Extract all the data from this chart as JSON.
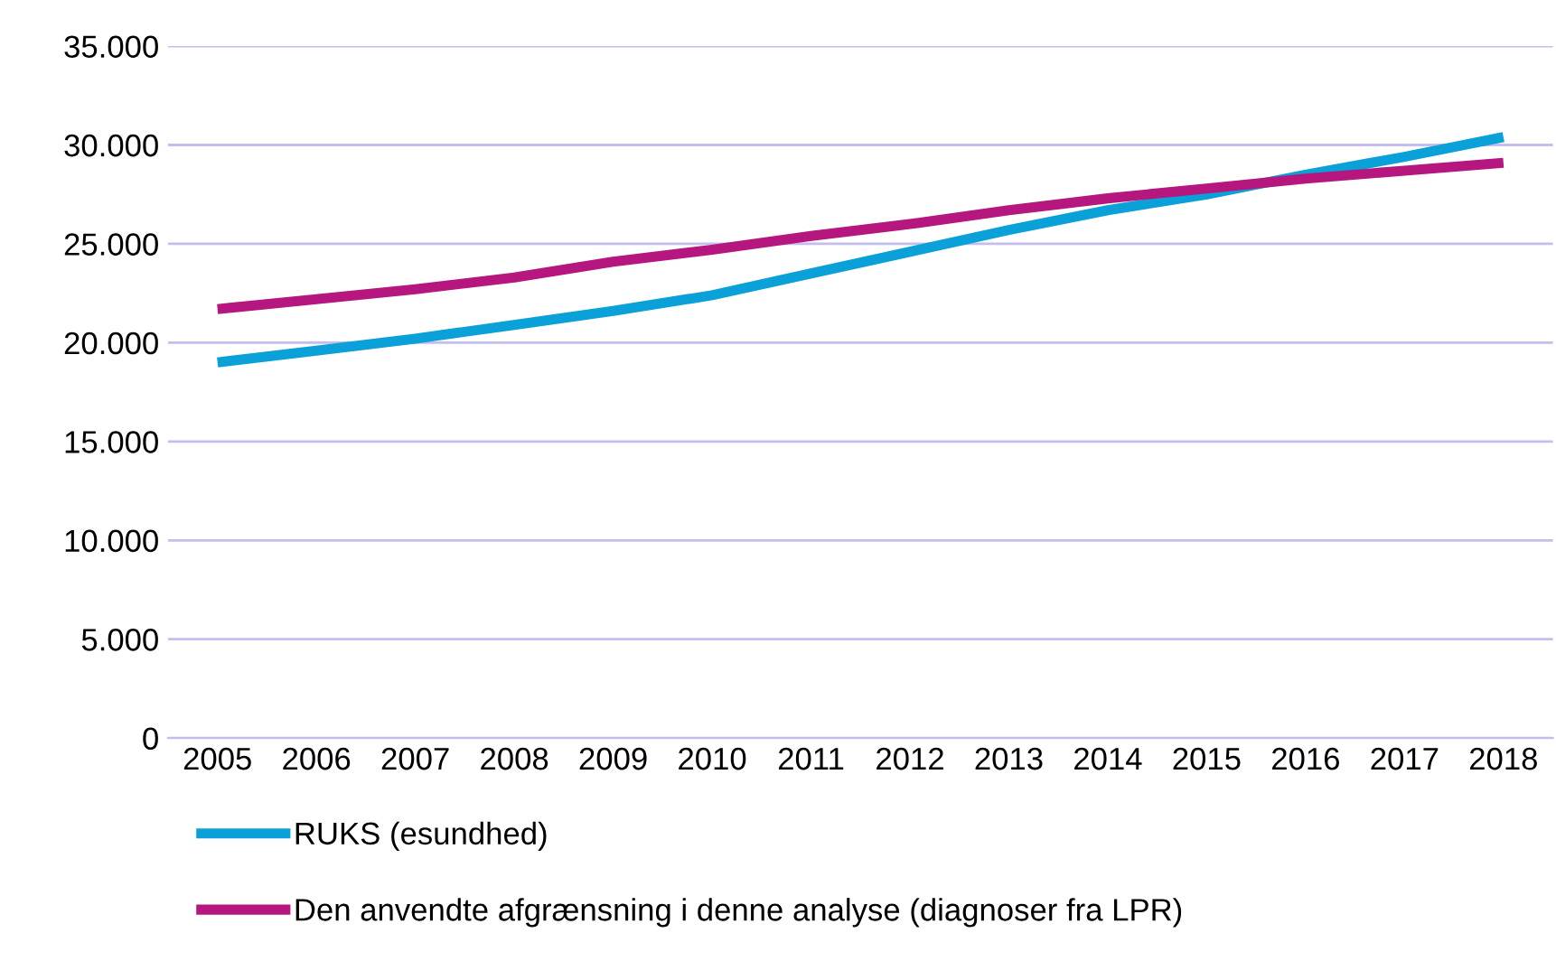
{
  "chart_data": {
    "type": "line",
    "categories": [
      "2005",
      "2006",
      "2007",
      "2008",
      "2009",
      "2010",
      "2011",
      "2012",
      "2013",
      "2014",
      "2015",
      "2016",
      "2017",
      "2018"
    ],
    "series": [
      {
        "name": "RUKS (esundhed)",
        "color": "#0aa0d8",
        "values": [
          19000,
          19600,
          20200,
          20900,
          21600,
          22400,
          23500,
          24600,
          25700,
          26700,
          27500,
          28500,
          29400,
          30400
        ]
      },
      {
        "name": "Den anvendte afgrænsning i denne analyse (diagnoser fra LPR)",
        "color": "#b5177f",
        "values": [
          21700,
          22200,
          22700,
          23300,
          24100,
          24700,
          25400,
          26000,
          26700,
          27300,
          27800,
          28300,
          28700,
          29100
        ]
      }
    ],
    "ylim": [
      0,
      35000
    ],
    "yticks": [
      {
        "value": 0,
        "label": "0"
      },
      {
        "value": 5000,
        "label": "5.000"
      },
      {
        "value": 10000,
        "label": "10.000"
      },
      {
        "value": 15000,
        "label": "15.000"
      },
      {
        "value": 20000,
        "label": "20.000"
      },
      {
        "value": 25000,
        "label": "25.000"
      },
      {
        "value": 30000,
        "label": "30.000"
      },
      {
        "value": 35000,
        "label": "35.000"
      }
    ],
    "grid": "y",
    "legend": "bottom",
    "marker": "none",
    "line_style": "solid"
  }
}
